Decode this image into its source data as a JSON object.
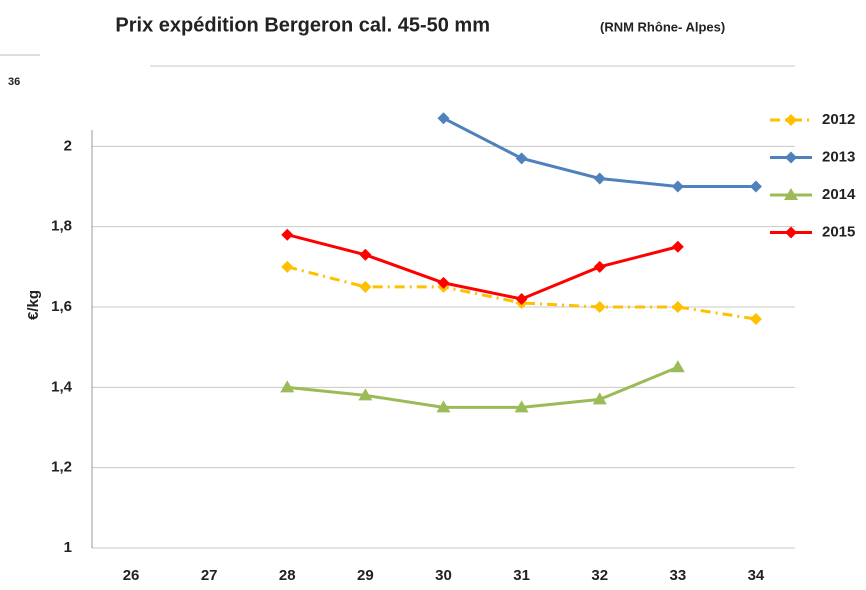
{
  "chart_data": {
    "type": "line",
    "title": "Prix expédition Bergeron cal. 45-50 mm",
    "subtitle": "(RNM Rhône- Alpes)",
    "corner_label": "36",
    "y_label": "€/kg",
    "x": [
      26,
      27,
      28,
      29,
      30,
      31,
      32,
      33,
      34
    ],
    "xlim": [
      25.5,
      34.5
    ],
    "xticks": [
      26,
      27,
      28,
      29,
      30,
      31,
      32,
      33,
      34
    ],
    "ylim": [
      1,
      2.2
    ],
    "yticks": [
      1,
      {
        "value": 1.2,
        "label": "1,2"
      },
      {
        "value": 1.4,
        "label": "1,4"
      },
      {
        "value": 1.6,
        "label": "1,6"
      },
      {
        "value": 1.8,
        "label": "1,8"
      },
      2
    ],
    "grid": true,
    "legend": "right",
    "series": [
      {
        "name": "2012",
        "color": "#ffc000",
        "marker": "diamond",
        "dash": "dashdot",
        "values": [
          null,
          null,
          1.7,
          1.65,
          1.65,
          1.61,
          1.6,
          1.6,
          1.57
        ]
      },
      {
        "name": "2013",
        "color": "#4f81bd",
        "marker": "diamond",
        "dash": "solid",
        "values": [
          null,
          null,
          null,
          null,
          2.07,
          1.97,
          1.92,
          1.9,
          1.9
        ]
      },
      {
        "name": "2014",
        "color": "#9bbb59",
        "marker": "triangle",
        "dash": "solid",
        "values": [
          null,
          null,
          1.4,
          1.38,
          1.35,
          1.35,
          1.37,
          1.45,
          null
        ]
      },
      {
        "name": "2015",
        "color": "#ff0000",
        "marker": "diamond",
        "dash": "solid",
        "values": [
          null,
          null,
          1.78,
          1.73,
          1.66,
          1.62,
          1.7,
          1.75,
          null
        ]
      }
    ]
  }
}
